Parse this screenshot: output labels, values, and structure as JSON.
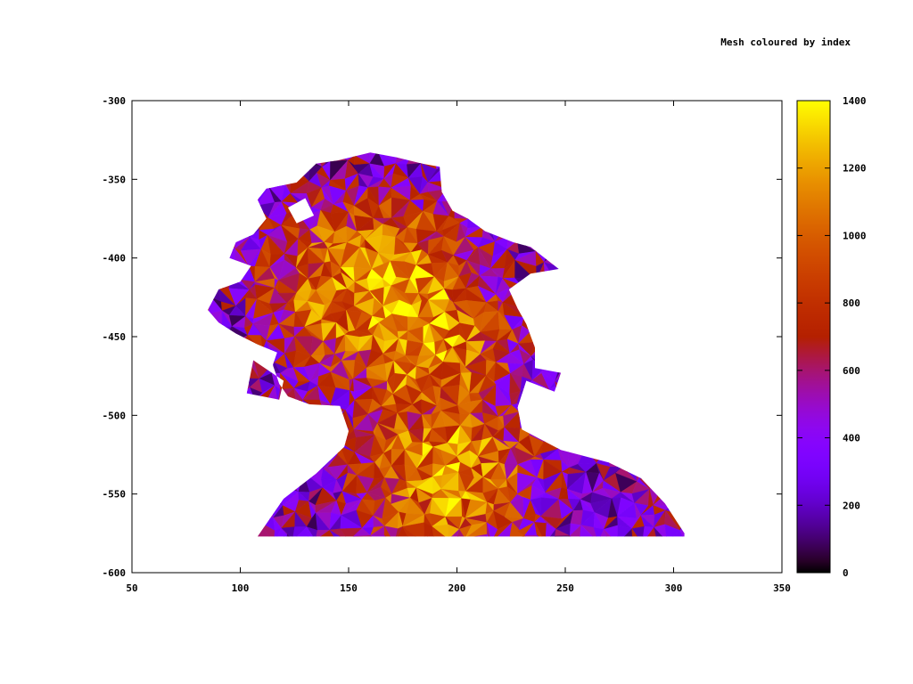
{
  "chart_data": {
    "type": "heatmap",
    "title": "Mesh coloured by index",
    "xlabel": "",
    "ylabel": "",
    "xlim": [
      50,
      350
    ],
    "ylim": [
      -600,
      -300
    ],
    "x_ticks": [
      50,
      100,
      150,
      200,
      250,
      300,
      350
    ],
    "y_ticks": [
      -300,
      -350,
      -400,
      -450,
      -500,
      -550,
      -600
    ],
    "colorbar": {
      "range": [
        0,
        1400
      ],
      "ticks": [
        0,
        200,
        400,
        600,
        800,
        1000,
        1200,
        1400
      ],
      "palette": "black-purple-red-orange-yellow"
    },
    "grid": false,
    "mesh_outline": [
      [
        108,
        -577
      ],
      [
        120,
        -553
      ],
      [
        135,
        -537
      ],
      [
        148,
        -520
      ],
      [
        150,
        -510
      ],
      [
        146,
        -494
      ],
      [
        132,
        -493
      ],
      [
        122,
        -488
      ],
      [
        118,
        -480
      ],
      [
        115,
        -468
      ],
      [
        117,
        -460
      ],
      [
        108,
        -455
      ],
      [
        98,
        -448
      ],
      [
        90,
        -441
      ],
      [
        85,
        -433
      ],
      [
        90,
        -420
      ],
      [
        100,
        -415
      ],
      [
        105,
        -405
      ],
      [
        95,
        -400
      ],
      [
        98,
        -390
      ],
      [
        106,
        -385
      ],
      [
        112,
        -375
      ],
      [
        108,
        -363
      ],
      [
        112,
        -356
      ],
      [
        126,
        -352
      ],
      [
        135,
        -340
      ],
      [
        145,
        -338
      ],
      [
        160,
        -333
      ],
      [
        172,
        -336
      ],
      [
        184,
        -340
      ],
      [
        192,
        -342
      ],
      [
        193,
        -358
      ],
      [
        198,
        -370
      ],
      [
        205,
        -375
      ],
      [
        213,
        -383
      ],
      [
        226,
        -390
      ],
      [
        234,
        -393
      ],
      [
        247,
        -407
      ],
      [
        234,
        -410
      ],
      [
        224,
        -420
      ],
      [
        228,
        -432
      ],
      [
        232,
        -442
      ],
      [
        236,
        -457
      ],
      [
        236,
        -470
      ],
      [
        248,
        -473
      ],
      [
        245,
        -485
      ],
      [
        232,
        -478
      ],
      [
        228,
        -495
      ],
      [
        230,
        -509
      ],
      [
        248,
        -522
      ],
      [
        270,
        -530
      ],
      [
        285,
        -540
      ],
      [
        296,
        -556
      ],
      [
        305,
        -575
      ],
      [
        305,
        -577
      ]
    ],
    "holes": [
      [
        [
          122,
          -368
        ],
        [
          130,
          -362
        ],
        [
          134,
          -373
        ],
        [
          126,
          -378
        ]
      ],
      [
        [
          106,
          -465
        ],
        [
          120,
          -478
        ],
        [
          118,
          -490
        ],
        [
          103,
          -486
        ]
      ]
    ],
    "value_peaks": [
      {
        "x": 170,
        "y": -425,
        "value": 1250
      },
      {
        "x": 185,
        "y": -455,
        "value": 1150
      },
      {
        "x": 195,
        "y": -535,
        "value": 1150
      },
      {
        "x": 150,
        "y": -420,
        "value": 1100
      }
    ]
  }
}
